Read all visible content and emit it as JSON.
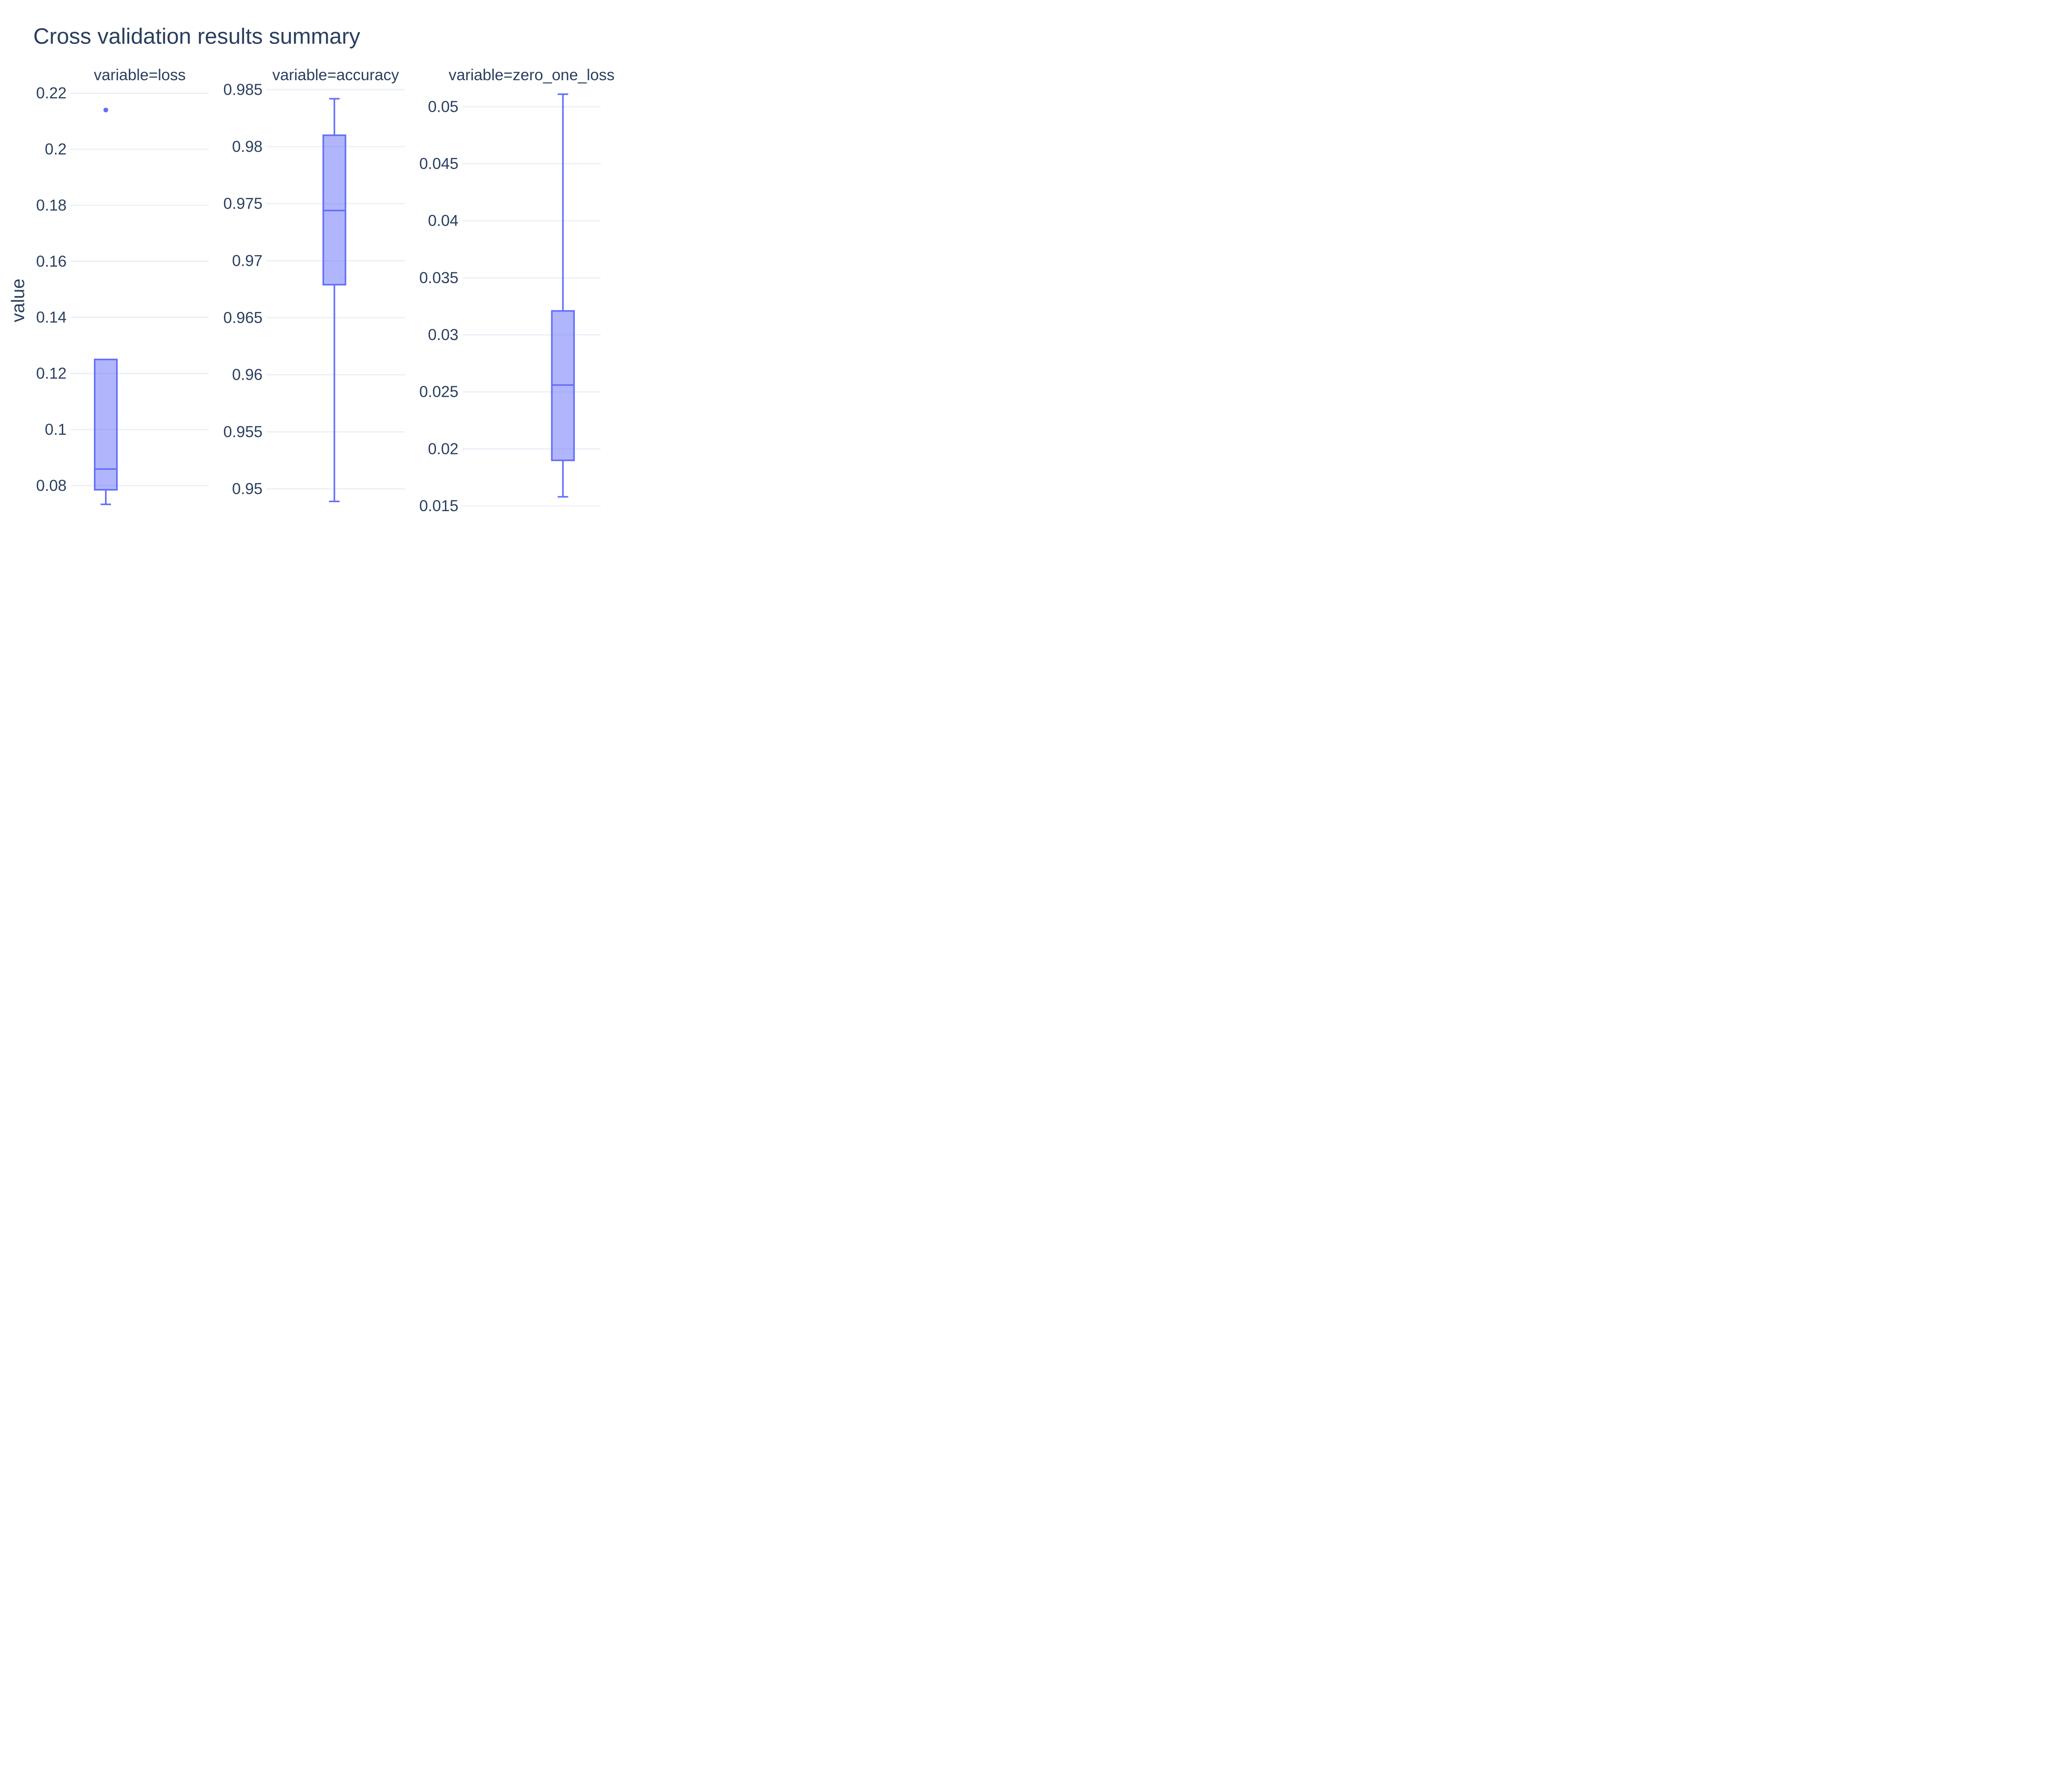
{
  "chart_data": {
    "type": "box",
    "title": "Cross validation results summary",
    "ylabel": "value",
    "grid": true,
    "colors": {
      "box_line": "#636efa",
      "box_fill": "rgba(99,110,250,0.5)",
      "grid": "#ebf0f8",
      "text": "#2a3f5f"
    },
    "facets": [
      {
        "title": "variable=loss",
        "ylim": [
          0.0715,
          0.2225
        ],
        "ticks": [
          {
            "value": 0.08,
            "label": "0.08"
          },
          {
            "value": 0.1,
            "label": "0.1"
          },
          {
            "value": 0.12,
            "label": "0.12"
          },
          {
            "value": 0.14,
            "label": "0.14"
          },
          {
            "value": 0.16,
            "label": "0.16"
          },
          {
            "value": 0.18,
            "label": "0.18"
          },
          {
            "value": 0.2,
            "label": "0.2"
          },
          {
            "value": 0.22,
            "label": "0.22"
          }
        ],
        "box": {
          "whisker_low": 0.0733,
          "q1": 0.0785,
          "median": 0.0859,
          "q3": 0.125,
          "whisker_high": 0.125,
          "outliers": [
            0.214
          ]
        }
      },
      {
        "title": "variable=accuracy",
        "ylim": [
          0.9482,
          0.9853
        ],
        "ticks": [
          {
            "value": 0.95,
            "label": "0.95"
          },
          {
            "value": 0.955,
            "label": "0.955"
          },
          {
            "value": 0.96,
            "label": "0.96"
          },
          {
            "value": 0.965,
            "label": "0.965"
          },
          {
            "value": 0.97,
            "label": "0.97"
          },
          {
            "value": 0.975,
            "label": "0.975"
          },
          {
            "value": 0.98,
            "label": "0.98"
          },
          {
            "value": 0.985,
            "label": "0.985"
          }
        ],
        "box": {
          "whisker_low": 0.9489,
          "q1": 0.9679,
          "median": 0.9744,
          "q3": 0.981,
          "whisker_high": 0.9842,
          "outliers": []
        }
      },
      {
        "title": "variable=zero_one_loss",
        "ylim": [
          0.0147,
          0.0518
        ],
        "ticks": [
          {
            "value": 0.015,
            "label": "0.015"
          },
          {
            "value": 0.02,
            "label": "0.02"
          },
          {
            "value": 0.025,
            "label": "0.025"
          },
          {
            "value": 0.03,
            "label": "0.03"
          },
          {
            "value": 0.035,
            "label": "0.035"
          },
          {
            "value": 0.04,
            "label": "0.04"
          },
          {
            "value": 0.045,
            "label": "0.045"
          },
          {
            "value": 0.05,
            "label": "0.05"
          }
        ],
        "box": {
          "whisker_low": 0.0158,
          "q1": 0.019,
          "median": 0.0256,
          "q3": 0.0321,
          "whisker_high": 0.0511,
          "outliers": []
        }
      }
    ]
  }
}
